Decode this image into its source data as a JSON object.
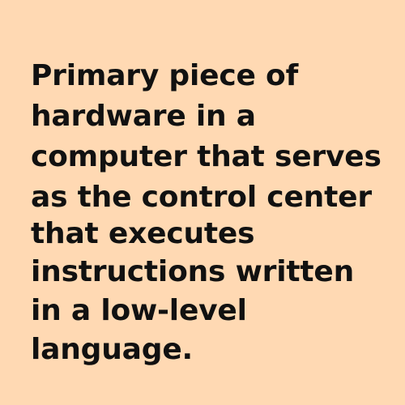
{
  "card": {
    "lines": [
      "Primary piece of",
      "hardware in a",
      "computer that serves",
      "as the control center",
      "that executes",
      "instructions written",
      "in a low-level",
      "language."
    ]
  }
}
